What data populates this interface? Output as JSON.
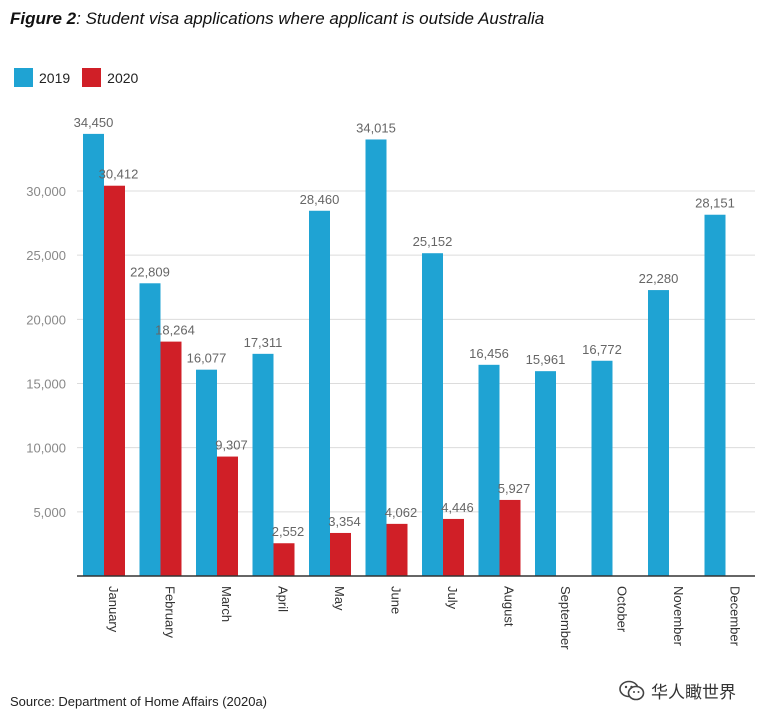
{
  "title": {
    "lead": "Figure 2",
    "rest": ": Student visa applications where applicant is outside Australia"
  },
  "source": "Source: Department of Home Affairs (2020a)",
  "watermark": "华人瞰世界",
  "chart_data": {
    "type": "bar",
    "categories": [
      "January",
      "February",
      "March",
      "April",
      "May",
      "June",
      "July",
      "August",
      "September",
      "October",
      "November",
      "December"
    ],
    "series": [
      {
        "name": "2019",
        "color": "#1fa3d3",
        "values": [
          34450,
          22809,
          16077,
          17311,
          28460,
          34015,
          25152,
          16456,
          15961,
          16772,
          22280,
          28151
        ],
        "labels": [
          "34,450",
          "22,809",
          "16,077",
          "17,311",
          "28,460",
          "34,015",
          "25,152",
          "16,456",
          "15,961",
          "16,772",
          "22,280",
          "28,151"
        ]
      },
      {
        "name": "2020",
        "color": "#d01f27",
        "values": [
          30412,
          18264,
          9307,
          2552,
          3354,
          4062,
          4446,
          5927,
          null,
          null,
          null,
          null
        ],
        "labels": [
          "30,412",
          "18,264",
          "9,307",
          "2,552",
          "3,354",
          "4,062",
          "4,446",
          "5,927",
          "",
          "",
          "",
          ""
        ]
      }
    ],
    "yticks": [
      5000,
      10000,
      15000,
      20000,
      25000,
      30000
    ],
    "ytick_labels": [
      "5,000",
      "10,000",
      "15,000",
      "20,000",
      "25,000",
      "30,000"
    ],
    "ylim": [
      0,
      36000
    ],
    "xlabel": "",
    "ylabel": "",
    "grid": true,
    "legend_position": "top-left"
  }
}
